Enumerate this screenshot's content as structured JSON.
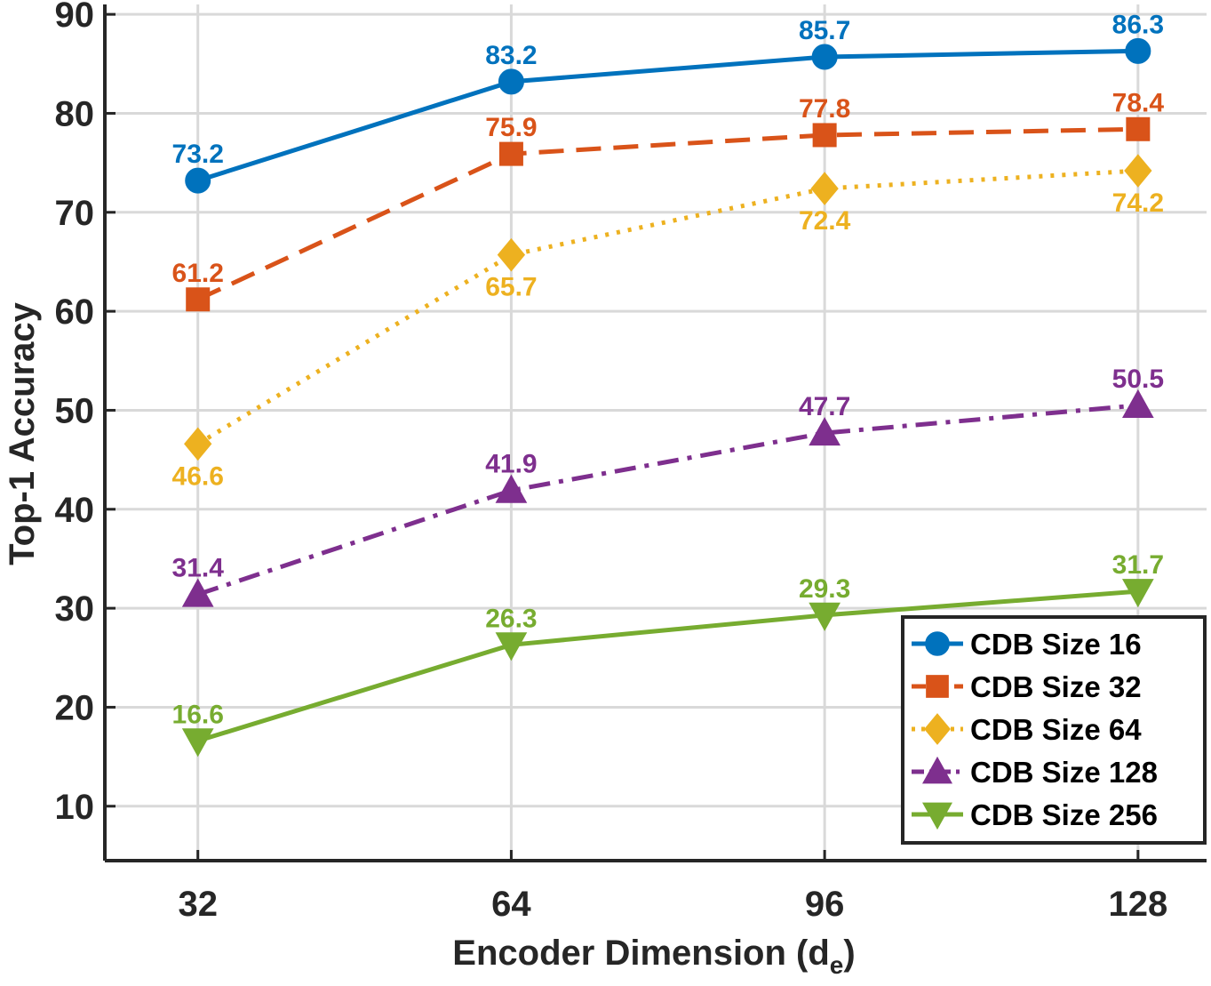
{
  "chart_data": {
    "type": "line",
    "title": "",
    "xlabel": "Encoder Dimension (d",
    "xlabel_subscript": "e",
    "xlabel_close": ")",
    "ylabel": "Top-1 Accuracy",
    "x": [
      32,
      64,
      96,
      128
    ],
    "x_tick_labels": [
      "32",
      "64",
      "96",
      "128"
    ],
    "xlim": [
      22.5,
      135
    ],
    "ylim": [
      4.5,
      91
    ],
    "y_ticks": [
      10,
      20,
      30,
      40,
      50,
      60,
      70,
      80,
      90
    ],
    "y_tick_labels": [
      "10",
      "20",
      "30",
      "40",
      "50",
      "60",
      "70",
      "80",
      "90"
    ],
    "grid": true,
    "legend_position": "bottom-right",
    "series": [
      {
        "name": "CDB Size 16",
        "values": [
          73.2,
          83.2,
          85.7,
          86.3
        ],
        "value_labels": [
          "73.2",
          "83.2",
          "85.7",
          "86.3"
        ],
        "label_side": [
          "above",
          "above",
          "above",
          "above"
        ],
        "color": "#0072BD",
        "marker": "circle",
        "line_style": "solid"
      },
      {
        "name": "CDB Size 32",
        "values": [
          61.2,
          75.9,
          77.8,
          78.4
        ],
        "value_labels": [
          "61.2",
          "75.9",
          "77.8",
          "78.4"
        ],
        "label_side": [
          "above",
          "above",
          "above",
          "above"
        ],
        "color": "#D95319",
        "marker": "square",
        "line_style": "dashed"
      },
      {
        "name": "CDB Size 64",
        "values": [
          46.6,
          65.7,
          72.4,
          74.2
        ],
        "value_labels": [
          "46.6",
          "65.7",
          "72.4",
          "74.2"
        ],
        "label_side": [
          "below",
          "below",
          "below",
          "below"
        ],
        "color": "#EDB120",
        "marker": "diamond",
        "line_style": "dotted"
      },
      {
        "name": "CDB Size 128",
        "values": [
          31.4,
          41.9,
          47.7,
          50.5
        ],
        "value_labels": [
          "31.4",
          "41.9",
          "47.7",
          "50.5"
        ],
        "label_side": [
          "above",
          "above",
          "above",
          "above"
        ],
        "color": "#7E2F8E",
        "marker": "triangle-up",
        "line_style": "dashdot"
      },
      {
        "name": "CDB Size 256",
        "values": [
          16.6,
          26.3,
          29.3,
          31.7
        ],
        "value_labels": [
          "16.6",
          "26.3",
          "29.3",
          "31.7"
        ],
        "label_side": [
          "above",
          "above",
          "above",
          "above"
        ],
        "color": "#77AC30",
        "marker": "triangle-down",
        "line_style": "solid"
      }
    ]
  }
}
